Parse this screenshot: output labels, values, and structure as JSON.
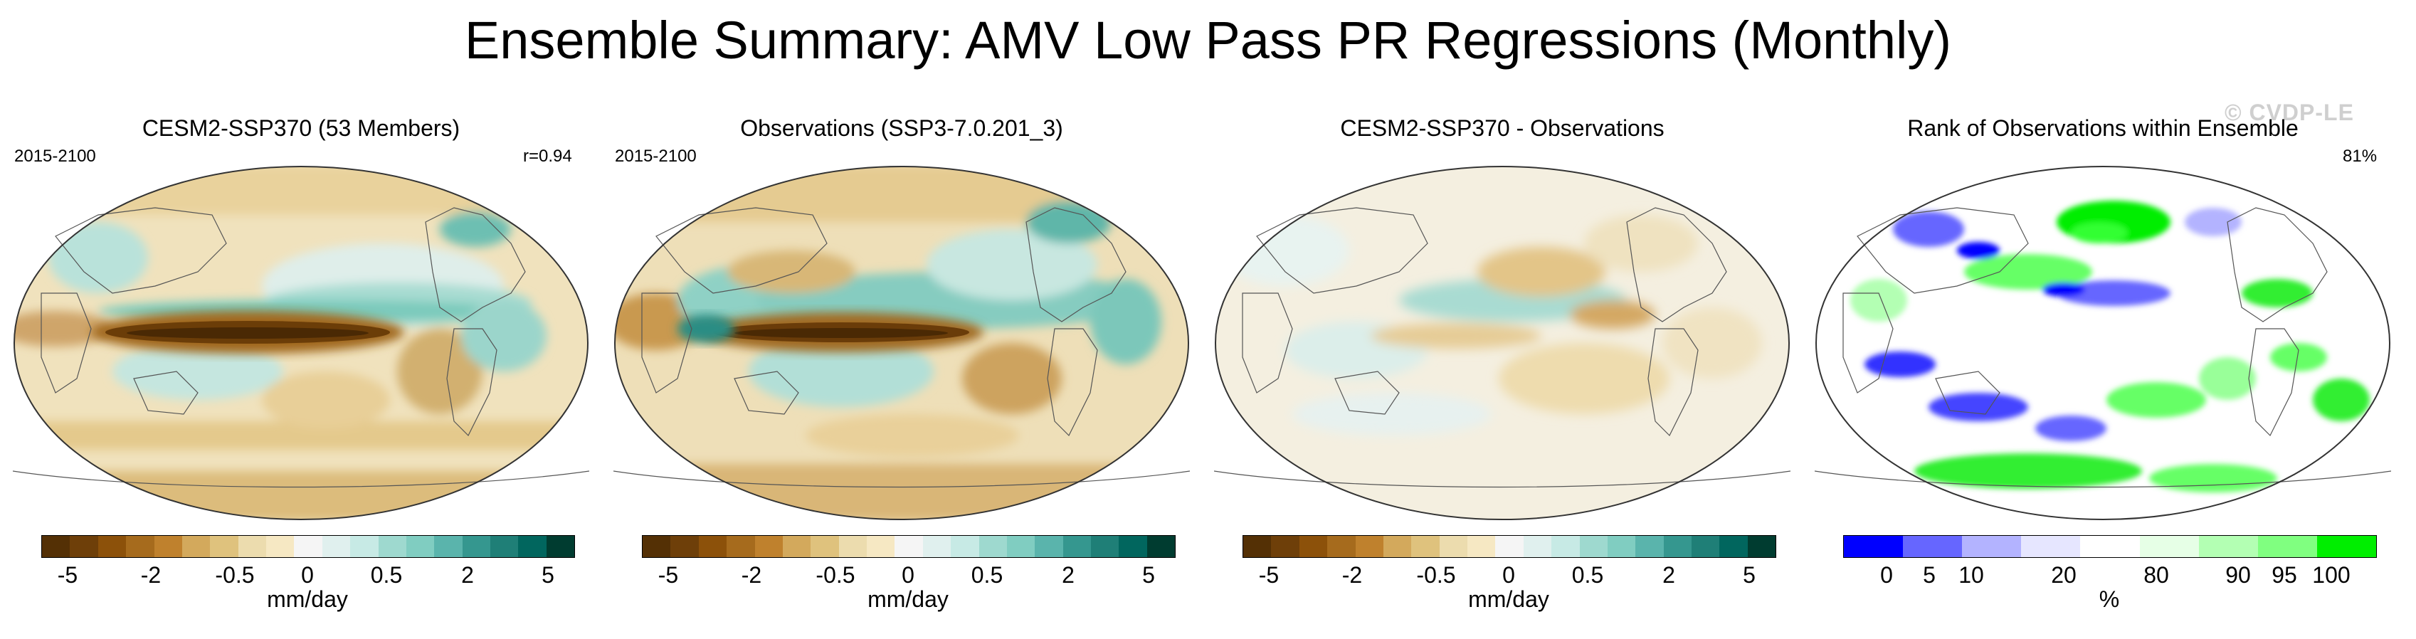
{
  "title": "Ensemble Summary: AMV Low Pass PR Regressions (Monthly)",
  "watermark": "© CVDP-LE",
  "panels": [
    {
      "title": "CESM2-SSP370 (53 Members)",
      "left_label": "2015-2100",
      "right_label": "r=0.94"
    },
    {
      "title": "Observations (SSP3-7.0.201_3)",
      "left_label": "2015-2100",
      "right_label": ""
    },
    {
      "title": "CESM2-SSP370 - Observations",
      "left_label": "",
      "right_label": ""
    },
    {
      "title": "Rank of Observations within Ensemble",
      "left_label": "",
      "right_label": "81%"
    }
  ],
  "colorbars": {
    "precip": {
      "ticks": [
        "-5",
        "-2",
        "-0.5",
        "0",
        "0.5",
        "2",
        "5"
      ],
      "unit": "mm/day",
      "colors": [
        "#543005",
        "#6e3f09",
        "#8c510a",
        "#a66b1d",
        "#bf812d",
        "#d3a95c",
        "#dfc27d",
        "#ecdcae",
        "#f6e8c3",
        "#f5f5f5",
        "#e0f0ee",
        "#c7eae5",
        "#9ed9cf",
        "#80cdc1",
        "#5ab4ac",
        "#35978f",
        "#1f7f77",
        "#01665e",
        "#003c30"
      ]
    },
    "rank": {
      "ticks": [
        "0",
        "5",
        "10",
        "20",
        "80",
        "90",
        "95",
        "100"
      ],
      "unit": "%",
      "colors": [
        "#0000ff",
        "#6666ff",
        "#b3b3ff",
        "#e6e6ff",
        "#ffffff",
        "#e6ffe6",
        "#b3ffb3",
        "#80ff80",
        "#00ee00"
      ]
    }
  }
}
